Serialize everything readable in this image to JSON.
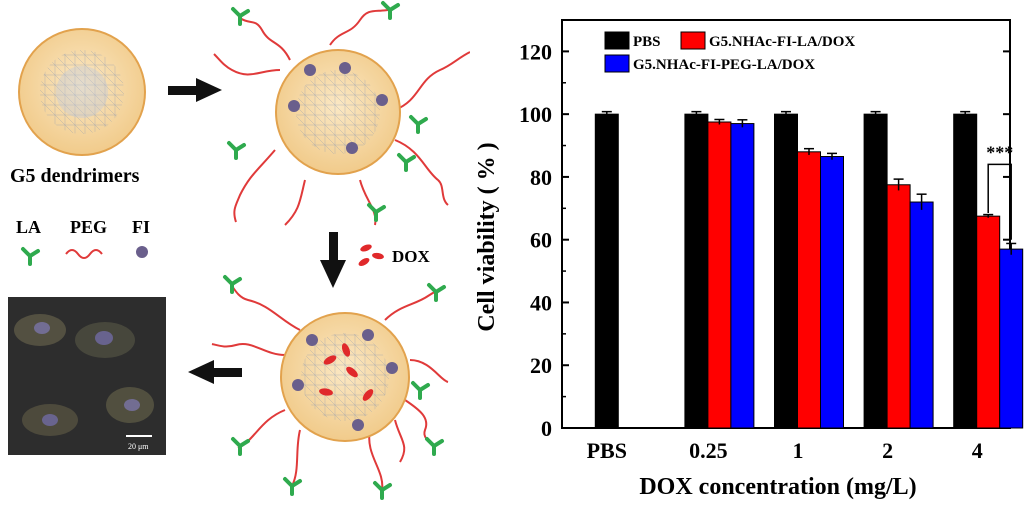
{
  "scheme": {
    "dendrimer_label": "G5 dendrimers",
    "legend": [
      {
        "label": "LA",
        "icon": "la-ligand-icon"
      },
      {
        "label": "PEG",
        "icon": "peg-chain-icon"
      },
      {
        "label": "FI",
        "icon": "fi-sphere-icon"
      }
    ],
    "dox_label": "DOX",
    "scale_bar_label": "20 μm",
    "colors": {
      "core_fill": "#f6d9a4",
      "core_stroke": "#e2a24d",
      "peg": "#e03a3a",
      "la": "#2faa4e",
      "fi": "#6a5f8c",
      "dox": "#e0292b"
    }
  },
  "chart_data": {
    "type": "bar",
    "xlabel": "DOX concentration (mg/L)",
    "ylabel": "Cell viability ( % )",
    "categories": [
      "PBS",
      "0.25",
      "1",
      "2",
      "4"
    ],
    "ylim": [
      0,
      130
    ],
    "yticks": [
      "0",
      "20",
      "40",
      "60",
      "80",
      "100",
      "120"
    ],
    "ytick_values": [
      0,
      20,
      40,
      60,
      80,
      100,
      120
    ],
    "grid": false,
    "legend_position": "top-left",
    "series": [
      {
        "name": "PBS",
        "color": "#000000",
        "values": [
          100,
          100,
          100,
          100,
          100
        ],
        "errors": [
          0.8,
          0.8,
          0.8,
          0.8,
          0.8
        ]
      },
      {
        "name": "G5.NHAc-FI-LA/DOX",
        "color": "#ff0000",
        "values": [
          null,
          97.5,
          88,
          77.5,
          67.5
        ],
        "errors": [
          null,
          0.8,
          1.0,
          1.8,
          0.5
        ]
      },
      {
        "name": "G5.NHAc-FI-PEG-LA/DOX",
        "color": "#0000ff",
        "values": [
          null,
          97,
          86.5,
          72,
          57
        ],
        "errors": [
          null,
          1.2,
          1.0,
          2.5,
          1.8
        ]
      }
    ],
    "annotation": {
      "text": "***",
      "category": "4"
    }
  }
}
